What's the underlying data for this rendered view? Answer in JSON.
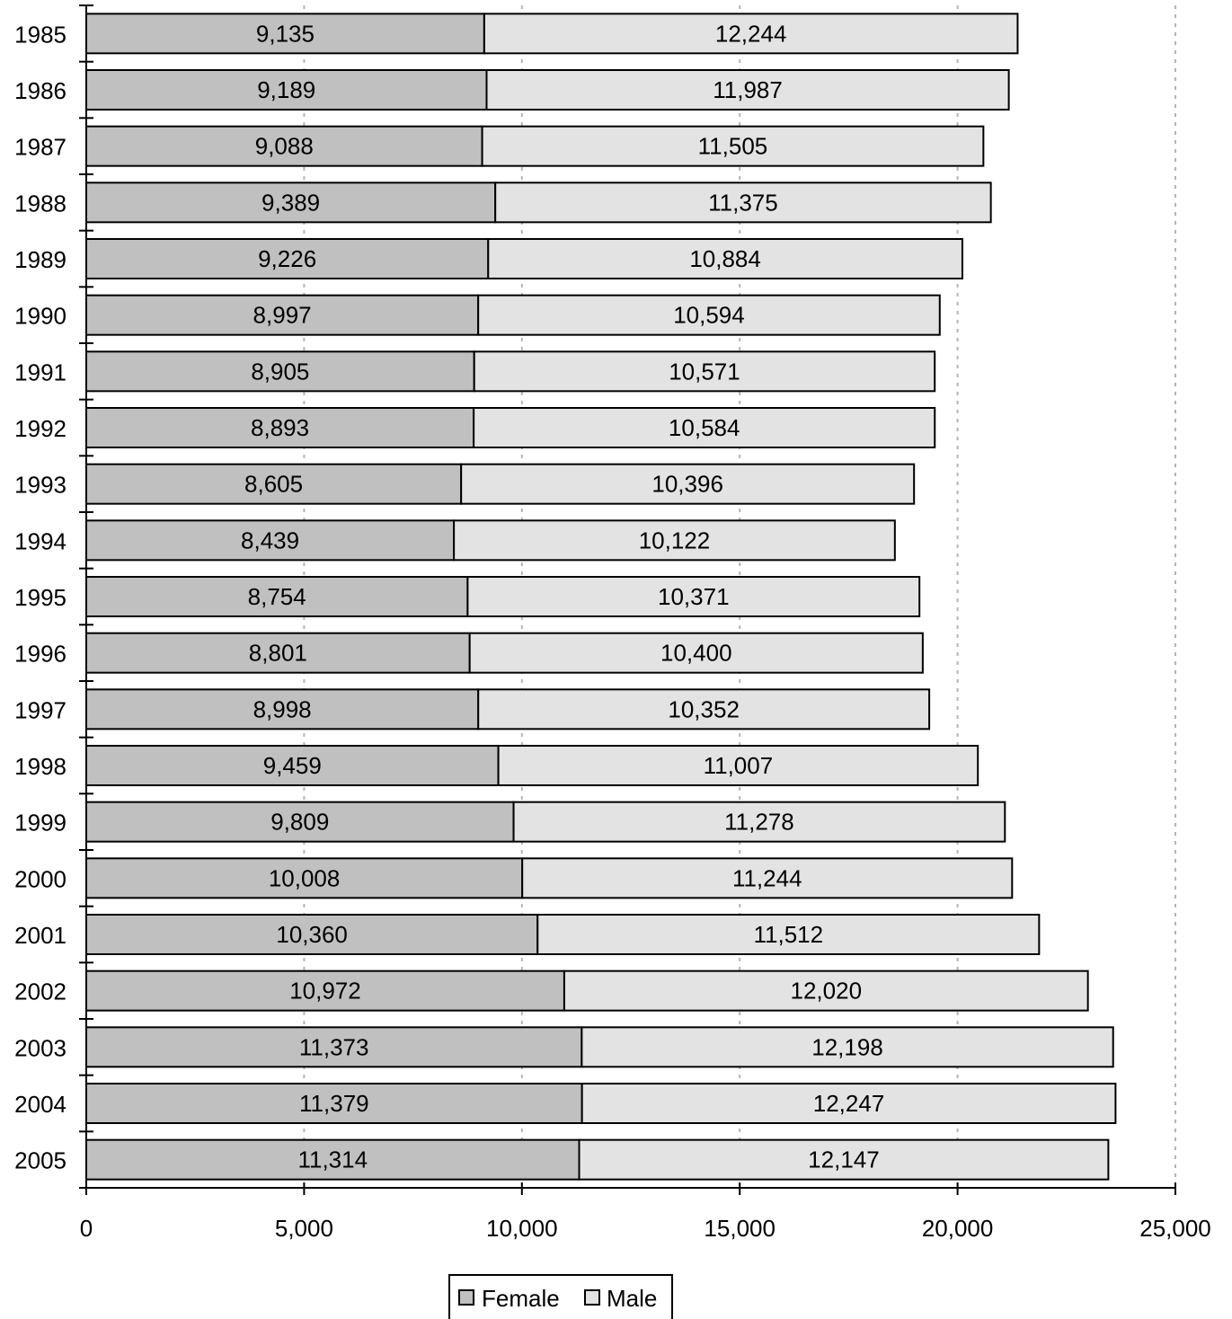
{
  "chart_data": {
    "type": "bar",
    "orientation": "horizontal",
    "stacked": true,
    "categories": [
      "1985",
      "1986",
      "1987",
      "1988",
      "1989",
      "1990",
      "1991",
      "1992",
      "1993",
      "1994",
      "1995",
      "1996",
      "1997",
      "1998",
      "1999",
      "2000",
      "2001",
      "2002",
      "2003",
      "2004",
      "2005"
    ],
    "series": [
      {
        "name": "Female",
        "color": "#c0c0c0",
        "values": [
          9135,
          9189,
          9088,
          9389,
          9226,
          8997,
          8905,
          8893,
          8605,
          8439,
          8754,
          8801,
          8998,
          9459,
          9809,
          10008,
          10360,
          10972,
          11373,
          11379,
          11314
        ],
        "labels": [
          "9,135",
          "9,189",
          "9,088",
          "9,389",
          "9,226",
          "8,997",
          "8,905",
          "8,893",
          "8,605",
          "8,439",
          "8,754",
          "8,801",
          "8,998",
          "9,459",
          "9,809",
          "10,008",
          "10,360",
          "10,972",
          "11,373",
          "11,379",
          "11,314"
        ]
      },
      {
        "name": "Male",
        "color": "#e3e3e3",
        "values": [
          12244,
          11987,
          11505,
          11375,
          10884,
          10594,
          10571,
          10584,
          10396,
          10122,
          10371,
          10400,
          10352,
          11007,
          11278,
          11244,
          11512,
          12020,
          12198,
          12247,
          12147
        ],
        "labels": [
          "12,244",
          "11,987",
          "11,505",
          "11,375",
          "10,884",
          "10,594",
          "10,571",
          "10,584",
          "10,396",
          "10,122",
          "10,371",
          "10,400",
          "10,352",
          "11,007",
          "11,278",
          "11,244",
          "11,512",
          "12,020",
          "12,198",
          "12,247",
          "12,147"
        ]
      }
    ],
    "title": "",
    "xlabel": "",
    "ylabel": "",
    "xlim": [
      0,
      25000
    ],
    "x_ticks": [
      0,
      5000,
      10000,
      15000,
      20000,
      25000
    ],
    "x_tick_labels": [
      "0",
      "5,000",
      "10,000",
      "15,000",
      "20,000",
      "25,000"
    ],
    "grid": "vertical dotted",
    "legend_position": "bottom-center"
  }
}
